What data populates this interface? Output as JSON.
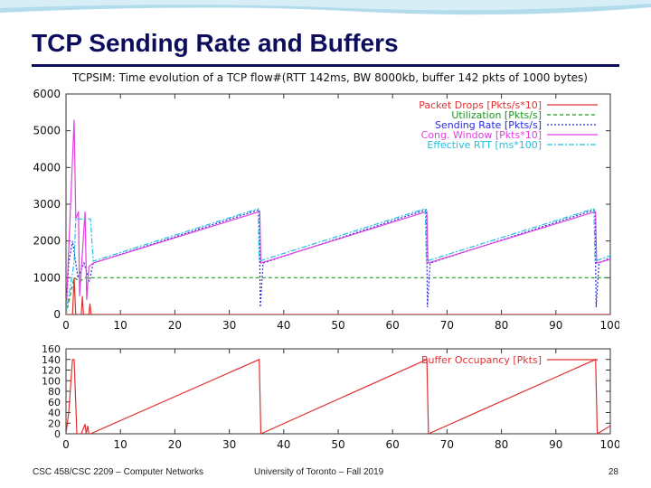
{
  "slide": {
    "title": "TCP Sending Rate and Buffers",
    "footer_left": "CSC 458/CSC 2209 – Computer Networks",
    "footer_center": "University of Toronto – Fall 2019",
    "page_number": "28"
  },
  "colors": {
    "title": "#0d0d5e",
    "packet_drops": "#e03030",
    "utilization": "#1a9a1a",
    "sending_rate": "#2a2ae0",
    "cong_window": "#e040e0",
    "effective_rtt": "#20c0e0",
    "buffer_occupancy": "#e03030"
  },
  "chart_data": [
    {
      "type": "line",
      "title": "TCPSIM: Time evolution of a TCP flow#(RTT 142ms, BW 8000kb, buffer 142 pkts of 1000 bytes)",
      "xlim": [
        0,
        100
      ],
      "ylim": [
        0,
        6000
      ],
      "x_ticks": [
        "0",
        "10",
        "20",
        "30",
        "40",
        "50",
        "60",
        "70",
        "80",
        "90",
        "100"
      ],
      "y_ticks": [
        "0",
        "1000",
        "2000",
        "3000",
        "4000",
        "5000",
        "6000"
      ],
      "legend_position": "top-right",
      "series": [
        {
          "name": "Packet Drops [Pkts/s*10]",
          "color_key": "packet_drops",
          "dash": "none",
          "x": [
            0,
            1.2,
            1.5,
            1.8,
            2.8,
            3.0,
            3.2,
            4.2,
            4.4,
            4.6,
            100
          ],
          "y": [
            0,
            0,
            1000,
            0,
            0,
            500,
            0,
            0,
            300,
            0,
            0
          ]
        },
        {
          "name": "Utilization [Pkts/s]",
          "color_key": "utilization",
          "dash": "4,3",
          "x": [
            0,
            1.5,
            2.5,
            3.5,
            5,
            100
          ],
          "y": [
            0,
            1000,
            900,
            1000,
            1000,
            1000
          ]
        },
        {
          "name": "Sending Rate [Pkts/s]",
          "color_key": "sending_rate",
          "dash": "2,2",
          "x": [
            0,
            0.5,
            1.2,
            2.2,
            3.3,
            4.3,
            5,
            35.5,
            35.7,
            36.2,
            66.2,
            66.4,
            66.9,
            97.2,
            97.4,
            97.9,
            100
          ],
          "y": [
            0,
            1400,
            2000,
            1000,
            1400,
            900,
            1400,
            2850,
            200,
            1400,
            2850,
            200,
            1400,
            2850,
            200,
            1400,
            1550
          ]
        },
        {
          "name": "Cong. Window [Pkts*10]",
          "color_key": "cong_window",
          "dash": "none",
          "x": [
            0,
            1.5,
            1.8,
            2.3,
            2.5,
            3.5,
            3.8,
            4.2,
            5,
            35.6,
            35.8,
            66.3,
            66.5,
            97.3,
            97.5,
            100
          ],
          "y": [
            0,
            5300,
            2600,
            2800,
            500,
            2800,
            400,
            1300,
            1400,
            2800,
            1400,
            2800,
            1400,
            2800,
            1400,
            1500
          ]
        },
        {
          "name": "Effective RTT [ms*100]",
          "color_key": "effective_rtt",
          "dash": "6,2,2,2",
          "x": [
            0,
            1.5,
            1.8,
            4.5,
            5,
            35.3,
            35.5,
            66,
            66.2,
            97,
            97.2,
            100
          ],
          "y": [
            0,
            1420,
            2600,
            2600,
            1450,
            2880,
            1450,
            2880,
            1450,
            2880,
            1450,
            1600
          ]
        }
      ]
    },
    {
      "type": "line",
      "title": "",
      "xlim": [
        0,
        100
      ],
      "ylim": [
        0,
        160
      ],
      "x_ticks": [
        "0",
        "10",
        "20",
        "30",
        "40",
        "50",
        "60",
        "70",
        "80",
        "90",
        "100"
      ],
      "y_ticks": [
        "0",
        "20",
        "40",
        "60",
        "80",
        "100",
        "120",
        "140",
        "160"
      ],
      "legend_position": "top-right",
      "series": [
        {
          "name": "Buffer Occupancy [Pkts]",
          "color_key": "buffer_occupancy",
          "dash": "none",
          "x": [
            0,
            0.5,
            1.2,
            1.5,
            2.0,
            2.8,
            3.5,
            3.7,
            4.0,
            4.2,
            4.5,
            35.5,
            35.8,
            66.3,
            66.6,
            97.3,
            97.6,
            100
          ],
          "y": [
            0,
            40,
            140,
            140,
            0,
            0,
            18,
            0,
            15,
            0,
            0,
            140,
            0,
            140,
            0,
            140,
            0,
            15
          ]
        }
      ]
    }
  ]
}
